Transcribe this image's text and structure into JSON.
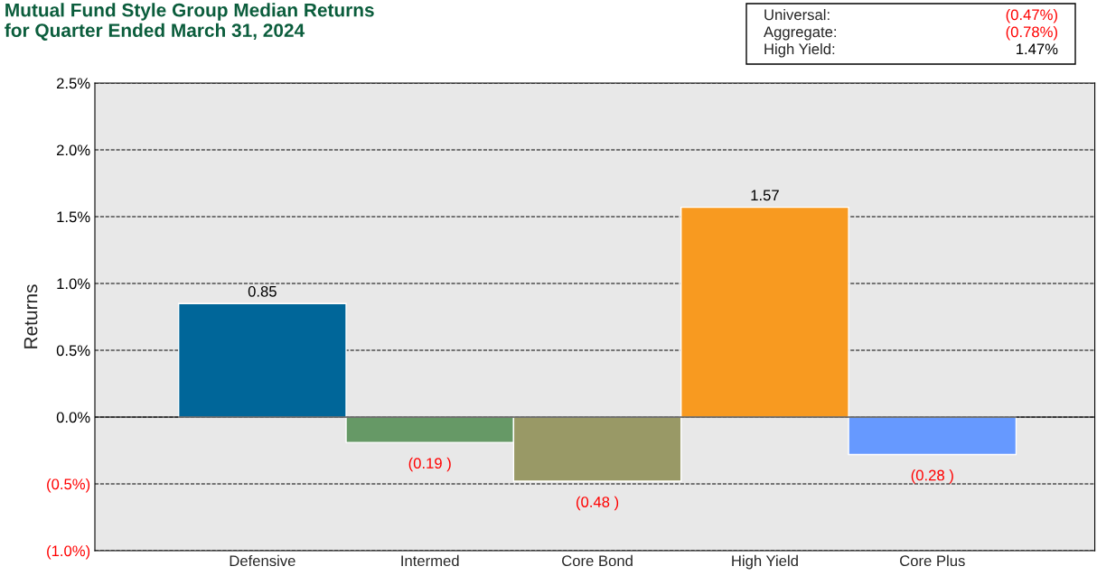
{
  "chart_data": {
    "type": "bar",
    "title": "Mutual Fund Style Group Median Returns\nfor Quarter Ended March 31, 2024",
    "ylabel": "Returns",
    "categories": [
      "Defensive",
      "Intermed",
      "Core Bond",
      "High Yield",
      "Core Plus"
    ],
    "values": [
      0.85,
      -0.19,
      -0.48,
      1.57,
      -0.28
    ],
    "colors": [
      "#006699",
      "#669966",
      "#999966",
      "#f89a20",
      "#6699ff"
    ],
    "value_labels": [
      "0.85",
      "(0.19 )",
      "(0.48 )",
      "1.57",
      "(0.28 )"
    ],
    "ylim": [
      -1.0,
      2.5
    ],
    "yticks": [
      {
        "value": 2.5,
        "label": "2.5%"
      },
      {
        "value": 2.0,
        "label": "2.0%"
      },
      {
        "value": 1.5,
        "label": "1.5%"
      },
      {
        "value": 1.0,
        "label": "1.0%"
      },
      {
        "value": 0.5,
        "label": "0.5%"
      },
      {
        "value": 0.0,
        "label": "0.0%"
      },
      {
        "value": -0.5,
        "label": "(0.5%)"
      },
      {
        "value": -1.0,
        "label": "(1.0%)"
      }
    ],
    "grid": "y",
    "line_style": "dashed",
    "ref_lines": [
      {
        "axis": "y",
        "value": 0,
        "color": "#000000",
        "line_style": "solid"
      }
    ],
    "annotations": [
      "Universal:",
      "(0.47%)",
      "Aggregate:",
      "(0.78%)",
      "High Yield:",
      "1.47%"
    ]
  }
}
